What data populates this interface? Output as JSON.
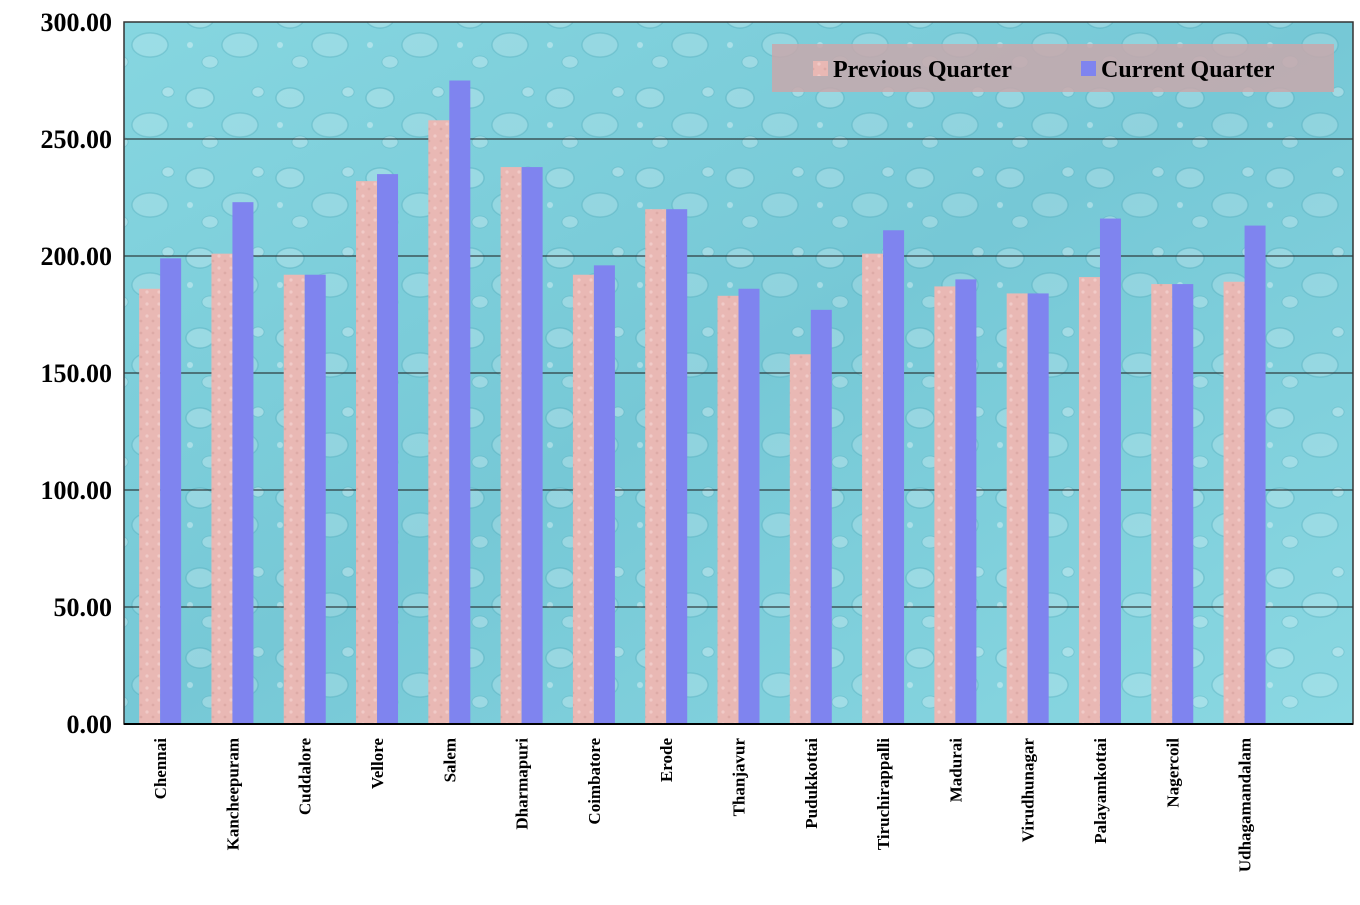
{
  "chart_data": {
    "type": "bar",
    "title": "",
    "xlabel": "",
    "ylabel": "",
    "ylim": [
      0,
      300
    ],
    "yticks": [
      "0.00",
      "50.00",
      "100.00",
      "150.00",
      "200.00",
      "250.00",
      "300.00"
    ],
    "grid": true,
    "legend_position": "top-right",
    "categories": [
      "Chennai",
      "Kancheepuram",
      "Cuddalore",
      "Vellore",
      "Salem",
      "Dharmapuri",
      "Coimbatore",
      "Erode",
      "Thanjavur",
      "Pudukkottai",
      "Tiruchirappalli",
      "Madurai",
      "Virudhunagar",
      "Palayamkottai",
      "Nagercoil",
      "Udhagamandalam"
    ],
    "series": [
      {
        "name": "Previous Quarter",
        "color": "#e9b8b4",
        "values": [
          186,
          201,
          192,
          232,
          258,
          238,
          192,
          220,
          183,
          158,
          201,
          187,
          184,
          191,
          188,
          189
        ]
      },
      {
        "name": "Current Quarter",
        "color": "#7f84ef",
        "values": [
          199,
          223,
          192,
          235,
          275,
          238,
          196,
          220,
          186,
          177,
          211,
          190,
          184,
          216,
          188,
          213
        ]
      }
    ]
  },
  "colors": {
    "plot_background": "#7fd0dc",
    "legend_background": "#c8a8ac"
  }
}
